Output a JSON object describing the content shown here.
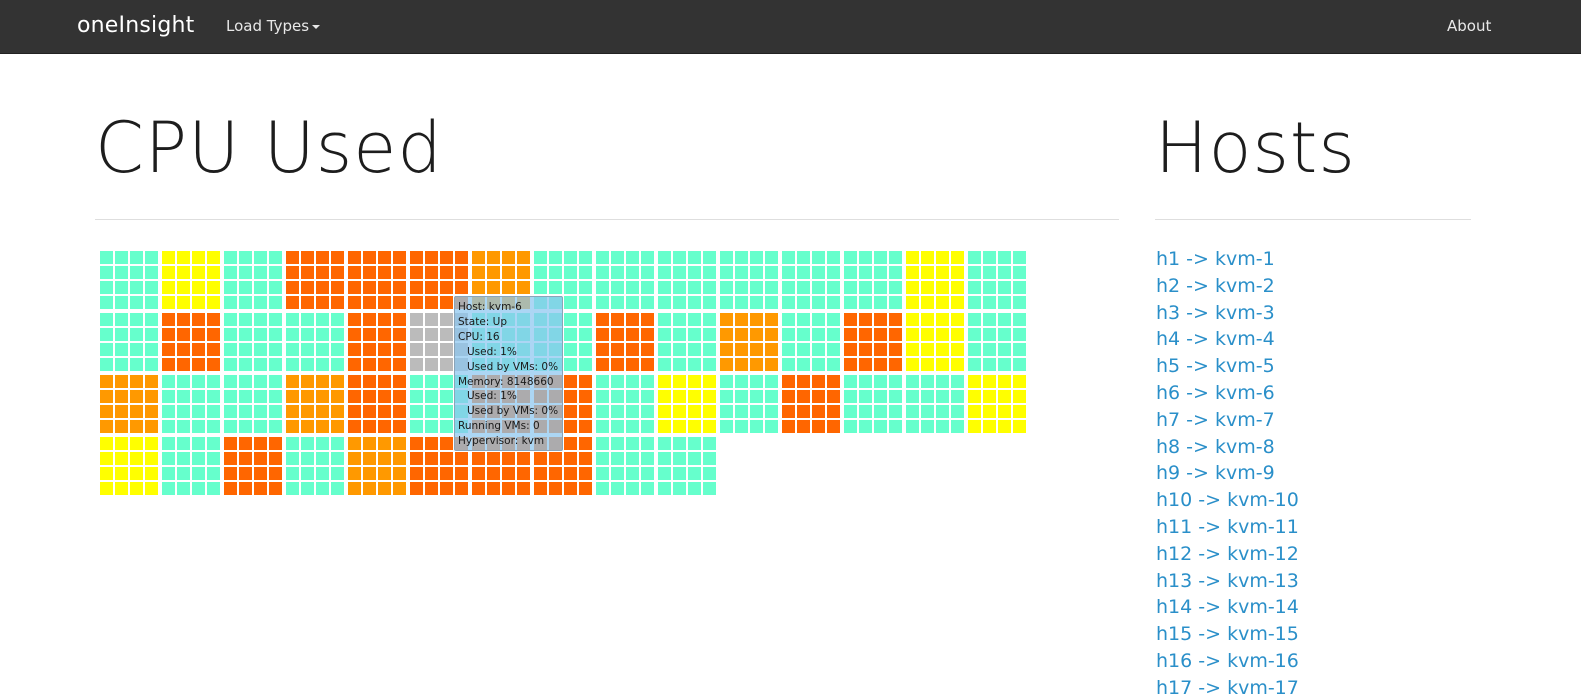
{
  "navbar": {
    "brand": "oneInsight",
    "menu_label": "Load Types",
    "about_label": "About"
  },
  "main": {
    "title": "CPU Used",
    "sidebar_title": "Hosts"
  },
  "colors": {
    "navbar": "#333333",
    "link": "#2a8fc9",
    "low_load": "#66ffcc",
    "medium_load": "#ffff00",
    "high_load": "#ff9900",
    "very_high_load": "#ff6600",
    "selected": "#bbbbbb"
  },
  "tooltip": {
    "host": "Host: kvm-6",
    "state": "State: Up",
    "cpu": "CPU: 16",
    "cpu_used": "Used: 1%",
    "cpu_used_vms": "Used by VMs: 0%",
    "memory": "Memory: 8148660",
    "mem_used": "Used: 1%",
    "mem_used_vms": "Used by VMs: 0%",
    "running_vms": "Running VMs: 0",
    "hypervisor": "Hypervisor: kvm"
  },
  "grid_rows": [
    [
      "low_load",
      "medium_load",
      "low_load",
      "very_high_load",
      "very_high_load",
      "very_high_load",
      "high_load",
      "low_load",
      "low_load",
      "low_load",
      "low_load",
      "low_load",
      "low_load",
      "medium_load",
      "low_load"
    ],
    [
      "low_load",
      "very_high_load",
      "low_load",
      "low_load",
      "very_high_load",
      "selected",
      "low_load",
      "low_load",
      "very_high_load",
      "low_load",
      "high_load",
      "low_load",
      "very_high_load",
      "medium_load",
      "low_load"
    ],
    [
      "high_load",
      "low_load",
      "low_load",
      "high_load",
      "very_high_load",
      "low_load",
      "very_high_load",
      "very_high_load",
      "low_load",
      "medium_load",
      "low_load",
      "very_high_load",
      "low_load",
      "low_load",
      "medium_load"
    ],
    [
      "medium_load",
      "low_load",
      "very_high_load",
      "low_load",
      "high_load",
      "very_high_load",
      "very_high_load",
      "very_high_load",
      "low_load",
      "low_load"
    ]
  ],
  "hosts": [
    "h1 -> kvm-1",
    "h2 -> kvm-2",
    "h3 -> kvm-3",
    "h4 -> kvm-4",
    "h5 -> kvm-5",
    "h6 -> kvm-6",
    "h7 -> kvm-7",
    "h8 -> kvm-8",
    "h9 -> kvm-9",
    "h10 -> kvm-10",
    "h11 -> kvm-11",
    "h12 -> kvm-12",
    "h13 -> kvm-13",
    "h14 -> kvm-14",
    "h15 -> kvm-15",
    "h16 -> kvm-16",
    "h17 -> kvm-17"
  ]
}
